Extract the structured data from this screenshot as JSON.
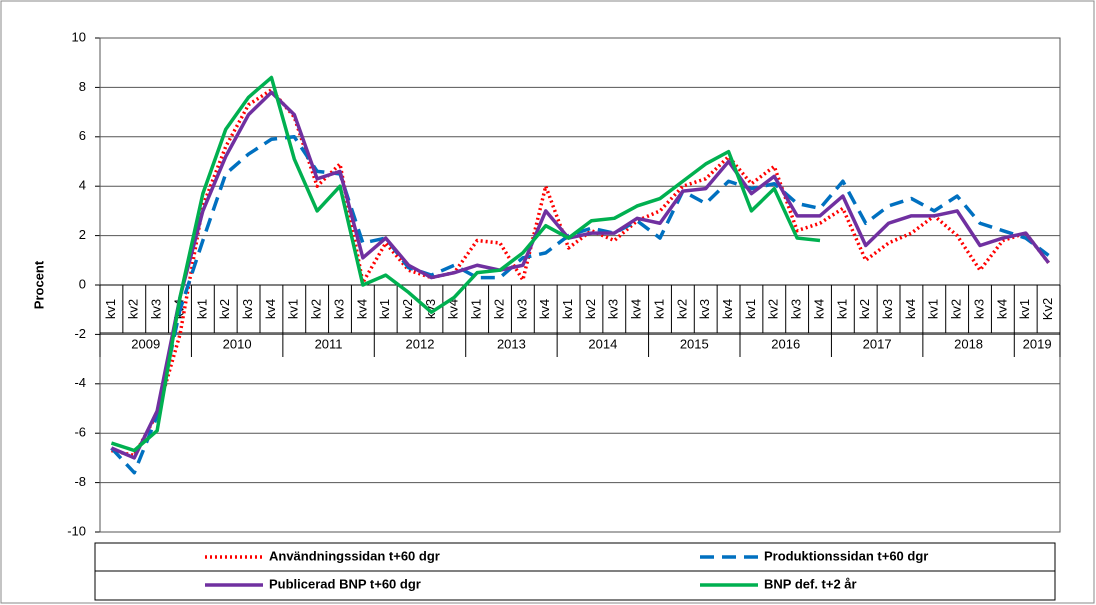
{
  "chart_data": {
    "type": "line",
    "y_label": "Procent",
    "categories": [
      "kv1",
      "kv2",
      "kv3",
      "kv4",
      "kv1",
      "kv2",
      "kv3",
      "kv4",
      "kv1",
      "kv2",
      "kv3",
      "kv4",
      "kv1",
      "kv2",
      "kv3",
      "kv4",
      "kv1",
      "kv2",
      "kv3",
      "kv4",
      "kv1",
      "kv2",
      "kv3",
      "kv4",
      "kv1",
      "kv2",
      "kv3",
      "kv4",
      "kv1",
      "kv2",
      "kv3",
      "kv4",
      "kv1",
      "kv2",
      "kv3",
      "kv4",
      "kv1",
      "kv2",
      "kv3",
      "kv4",
      "kv1",
      "Kv2"
    ],
    "year_labels": [
      "2009",
      "2010",
      "2011",
      "2012",
      "2013",
      "2014",
      "2015",
      "2016",
      "2017",
      "2018",
      "2019"
    ],
    "ylim": [
      -10,
      10
    ],
    "yticks": [
      -10,
      -8,
      -6,
      -4,
      -2,
      0,
      2,
      4,
      6,
      8,
      10
    ],
    "grid": true,
    "series": [
      {
        "name": "Användningssidan t+60 dgr",
        "color": "#ff0000",
        "style": "dotted",
        "values": [
          -6.7,
          -6.9,
          -5.2,
          -2.0,
          3.2,
          5.6,
          7.3,
          7.9,
          6.8,
          4.0,
          4.9,
          0.1,
          1.7,
          0.6,
          0.3,
          0.5,
          1.8,
          1.7,
          0.2,
          4.0,
          1.5,
          2.2,
          1.8,
          2.6,
          3.0,
          4.0,
          4.3,
          5.2,
          4.1,
          4.8,
          2.2,
          2.5,
          3.1,
          1.0,
          1.7,
          2.1,
          2.8,
          2.0,
          0.6,
          1.8,
          2.1,
          0.9
        ]
      },
      {
        "name": "Produktionssidan t+60 dgr",
        "color": "#0070c0",
        "style": "dashed",
        "values": [
          -6.6,
          -7.6,
          -5.3,
          -1.0,
          1.8,
          4.5,
          5.3,
          5.9,
          6.0,
          4.6,
          4.5,
          1.7,
          1.9,
          0.7,
          0.4,
          0.8,
          0.3,
          0.3,
          1.1,
          1.3,
          2.0,
          2.3,
          2.1,
          2.6,
          1.9,
          3.8,
          3.3,
          4.2,
          3.9,
          4.1,
          3.3,
          3.1,
          4.2,
          2.5,
          3.2,
          3.5,
          3.0,
          3.6,
          2.5,
          2.2,
          1.9,
          1.2
        ]
      },
      {
        "name": "Publicerad BNP t+60 dgr",
        "color": "#7030a0",
        "style": "solid",
        "values": [
          -6.6,
          -7.0,
          -5.1,
          -0.5,
          3.0,
          5.2,
          6.9,
          7.8,
          6.9,
          4.3,
          4.6,
          1.1,
          1.9,
          0.8,
          0.3,
          0.5,
          0.8,
          0.6,
          0.8,
          3.0,
          1.9,
          2.1,
          2.1,
          2.7,
          2.5,
          3.8,
          3.9,
          5.0,
          3.7,
          4.4,
          2.8,
          2.8,
          3.6,
          1.6,
          2.5,
          2.8,
          2.8,
          3.0,
          1.6,
          1.9,
          2.1,
          0.9
        ]
      },
      {
        "name": "BNP def. t+2 år",
        "color": "#00b050",
        "style": "solid",
        "values": [
          -6.4,
          -6.7,
          -5.9,
          -0.5,
          3.7,
          6.3,
          7.6,
          8.4,
          5.1,
          3.0,
          4.0,
          0.0,
          0.4,
          -0.3,
          -1.1,
          -0.5,
          0.5,
          0.6,
          1.3,
          2.4,
          1.9,
          2.6,
          2.7,
          3.2,
          3.5,
          4.2,
          4.9,
          5.4,
          3.0,
          3.9,
          1.9,
          1.8,
          null,
          null,
          null,
          null,
          null,
          null,
          null,
          null,
          null,
          null
        ]
      }
    ]
  }
}
